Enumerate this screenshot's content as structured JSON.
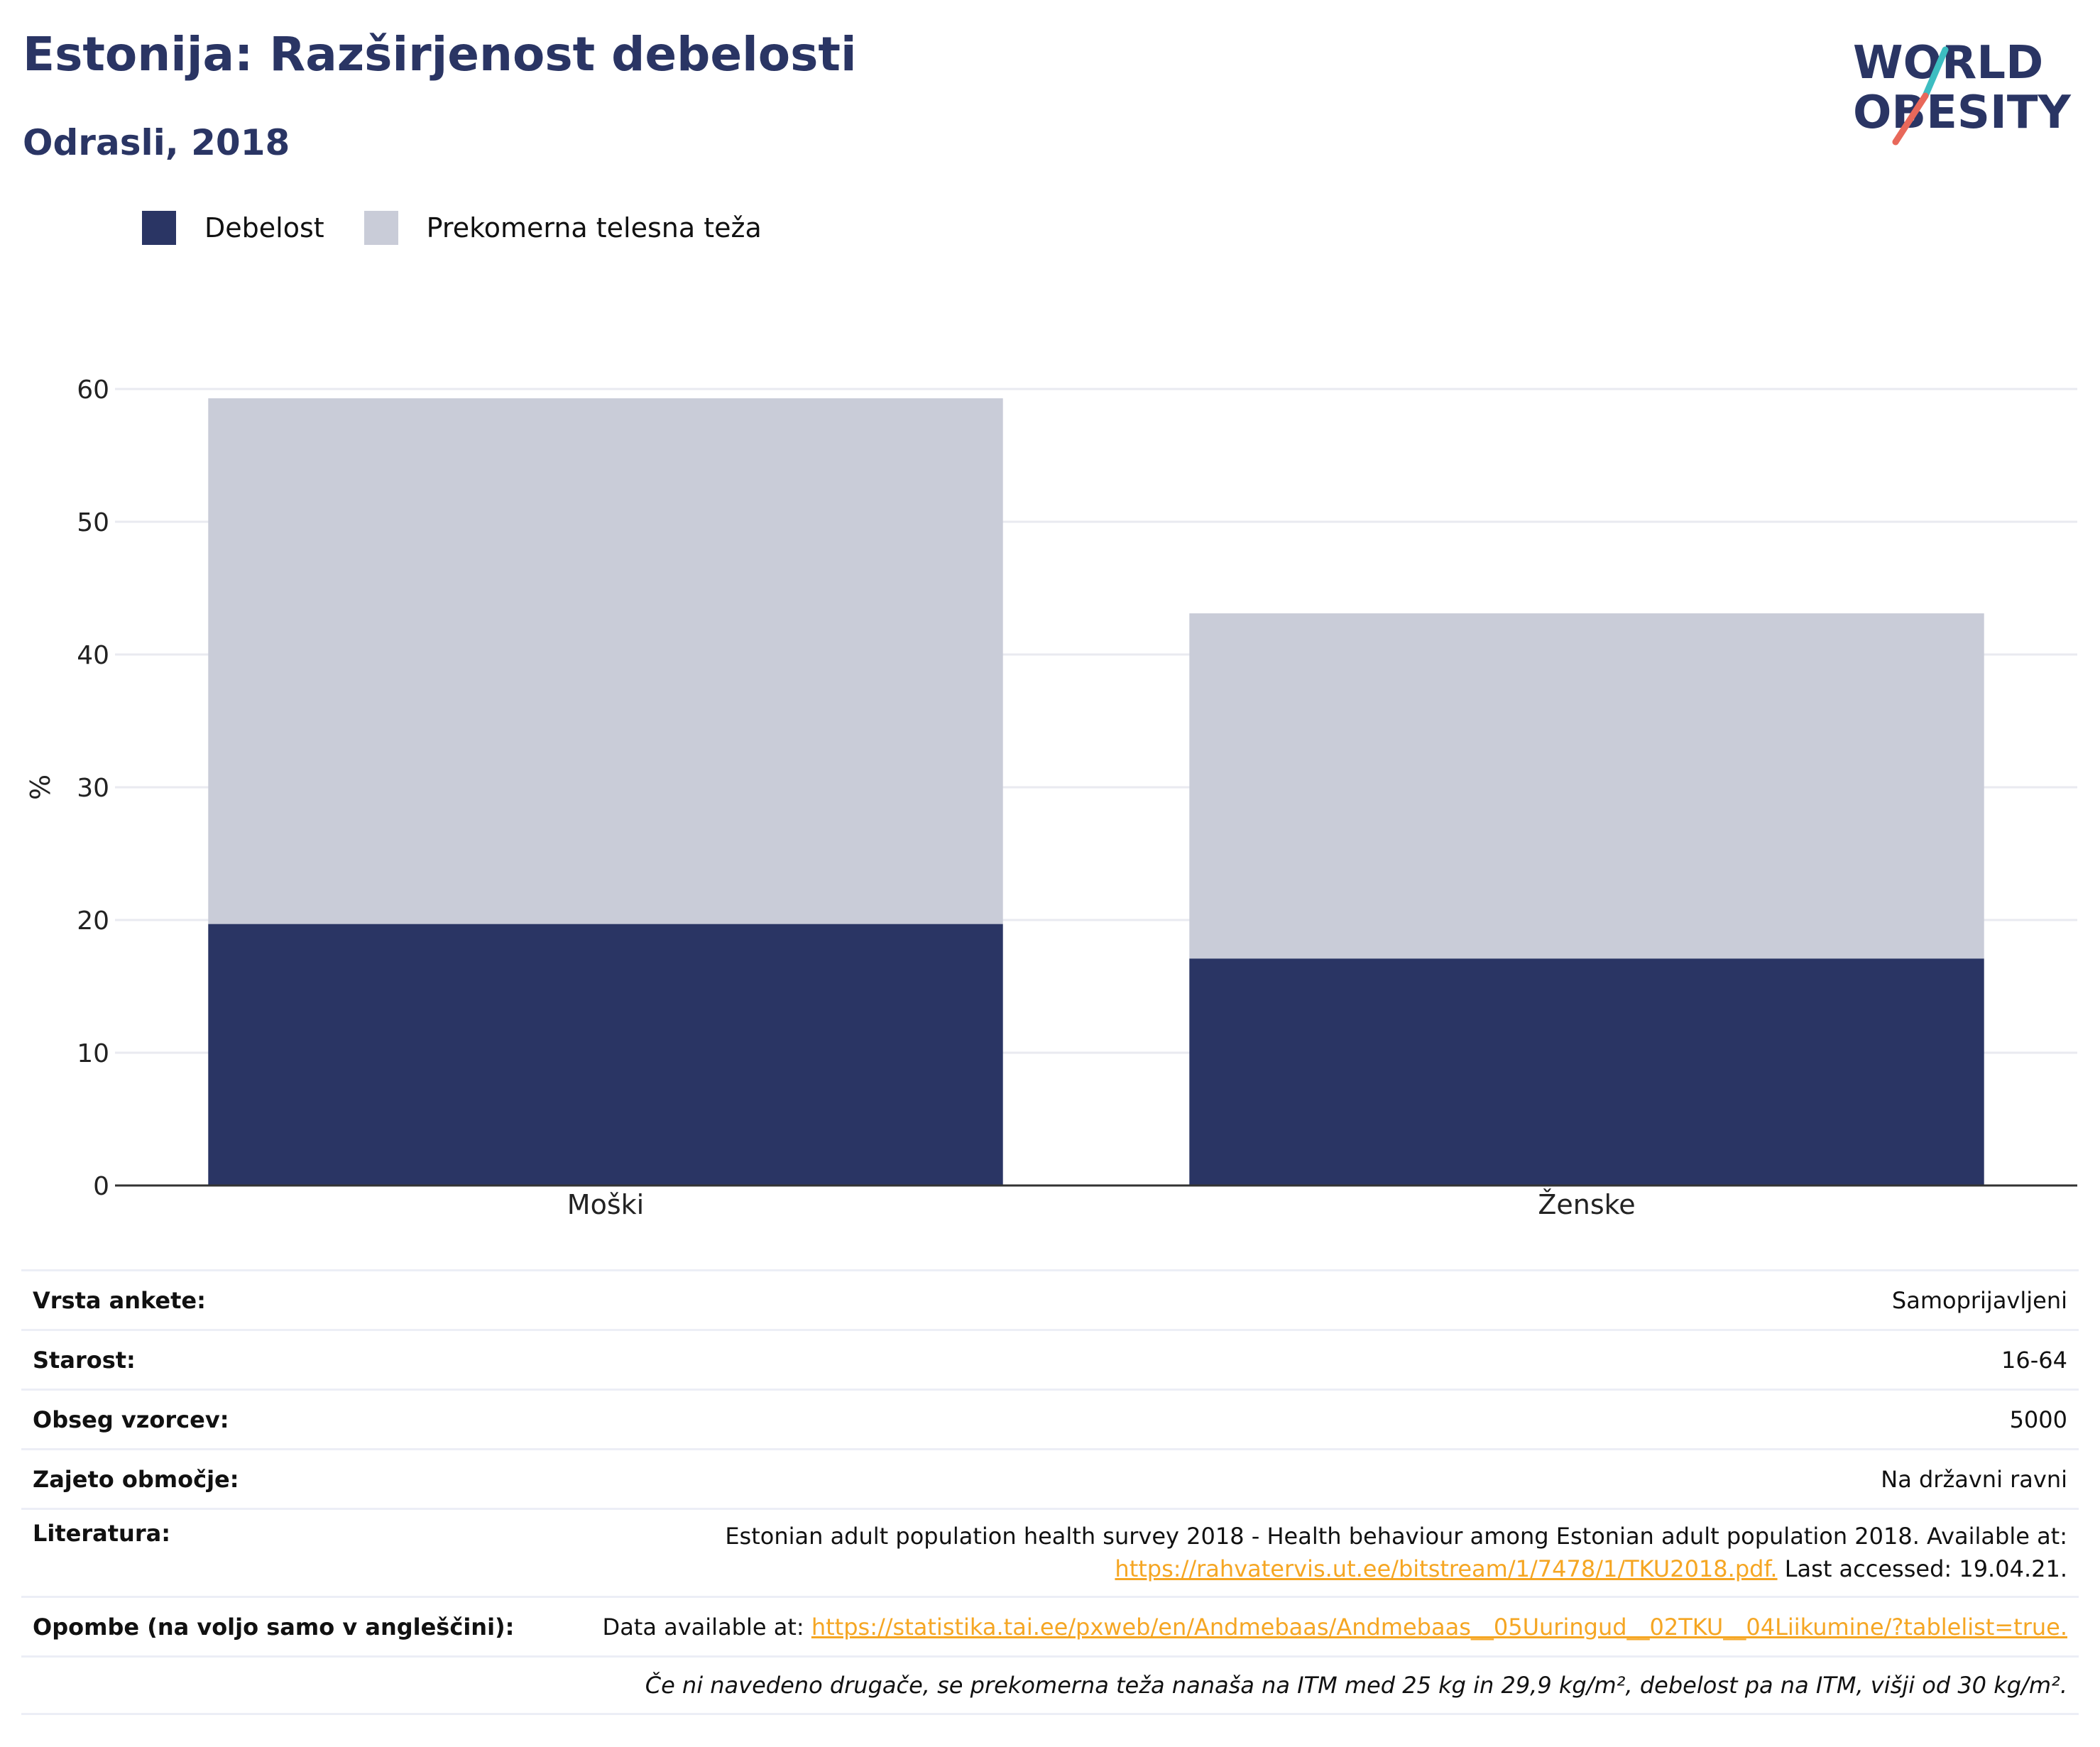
{
  "header": {
    "title": "Estonija: Razširjenost debelosti",
    "subtitle": "Odrasli, 2018"
  },
  "logo": {
    "line1": "WORLD",
    "line2": "OBESITY",
    "colors": {
      "text": "#2a3564",
      "slash_teal": "#3dbdc1",
      "slash_coral": "#e8685a"
    }
  },
  "legend": [
    {
      "label": "Debelost",
      "color": "#2a3564"
    },
    {
      "label": "Prekomerna telesna teža",
      "color": "#c9ccd8"
    }
  ],
  "chart_data": {
    "type": "bar",
    "stacked": true,
    "categories": [
      "Moški",
      "Ženske"
    ],
    "series": [
      {
        "name": "Debelost",
        "values": [
          19.7,
          17.1
        ],
        "color": "#2a3564"
      },
      {
        "name": "Prekomerna telesna teža",
        "values": [
          39.6,
          26.0
        ],
        "color": "#c9ccd8"
      }
    ],
    "ylabel": "%",
    "ylim": [
      0,
      60
    ],
    "yticks": [
      0,
      10,
      20,
      30,
      40,
      50,
      60
    ],
    "grid": true,
    "legend_position": "top-left"
  },
  "info_table": {
    "survey_type": {
      "label": "Vrsta ankete:",
      "value": "Samoprijavljeni"
    },
    "age": {
      "label": "Starost:",
      "value": "16-64"
    },
    "sample": {
      "label": "Obseg vzorcev:",
      "value": "5000"
    },
    "area": {
      "label": "Zajeto območje:",
      "value": "Na državni ravni"
    },
    "references": {
      "label": "Literatura:",
      "text1": "Estonian adult population health survey 2018 - Health behaviour among Estonian adult population 2018. Available at:",
      "link": "https://rahvatervis.ut.ee/bitstream/1/7478/1/TKU2018.pdf.",
      "text2": " Last accessed: 19.04.21."
    },
    "notes": {
      "label": "Opombe (na voljo samo v angleščini):",
      "text": "Data available at: ",
      "link": "https://statistika.tai.ee/pxweb/en/Andmebaas/Andmebaas__05Uuringud__02TKU__04Liikumine/?tablelist=true."
    },
    "footnote": "Če ni navedeno drugače, se prekomerna teža nanaša na ITM med 25 kg in 29,9 kg/m², debelost pa na ITM, višji od 30 kg/m²."
  }
}
